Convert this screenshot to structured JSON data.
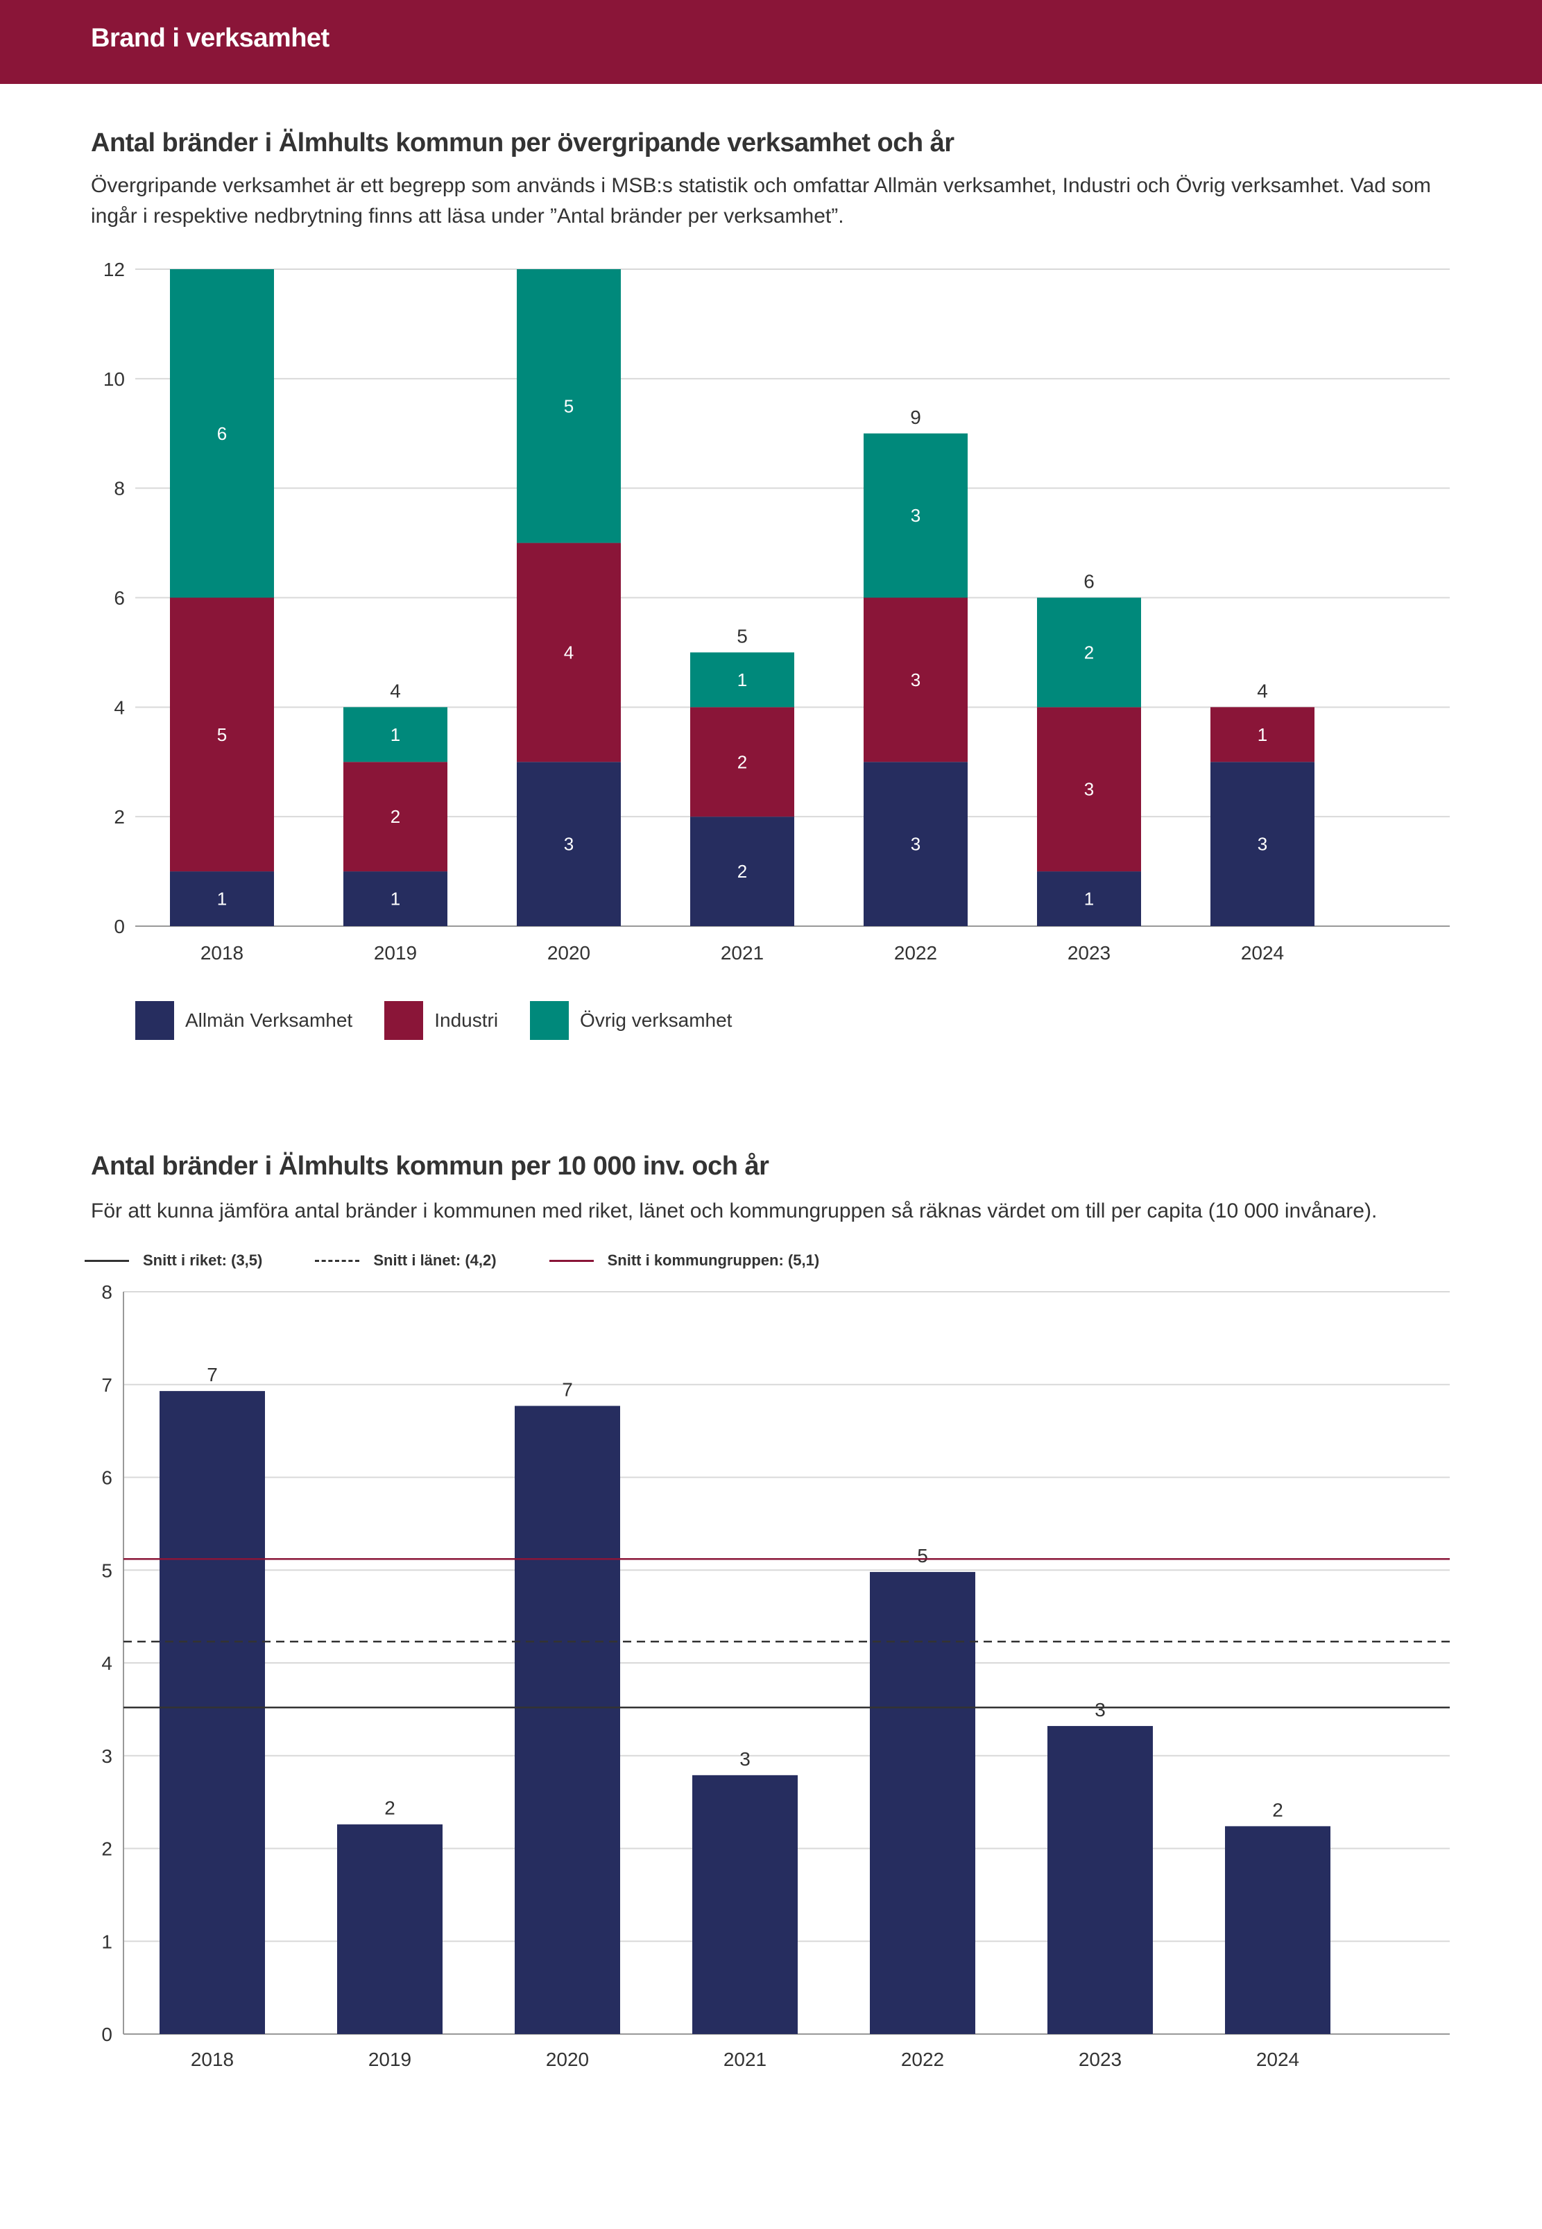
{
  "header": {
    "title": "Brand i verksamhet"
  },
  "section1": {
    "title": "Antal bränder i Älmhults kommun per övergripande verksamhet och år",
    "description": "Övergripande verksamhet är ett begrepp som används i MSB:s statistik och omfattar Allmän verksamhet, Industri och Övrig verksamhet. Vad som ingår i respektive nedbrytning finns att läsa under ”Antal bränder per verksamhet”."
  },
  "section2": {
    "title": "Antal bränder i Älmhults kommun per 10 000 inv. och år",
    "description": "För att kunna jämföra antal bränder i kommunen med riket, länet och kommungruppen så räknas värdet om till per capita (10 000 invånare)."
  },
  "colors": {
    "header": "#8a1538",
    "allman": "#262d5f",
    "industri": "#8a1538",
    "ovrig": "#00897b",
    "grid": "#d9d9d9"
  },
  "chart_data": [
    {
      "type": "bar",
      "stacked": true,
      "title": "Antal bränder i Älmhults kommun per övergripande verksamhet och år",
      "categories": [
        "2018",
        "2019",
        "2020",
        "2021",
        "2022",
        "2023",
        "2024"
      ],
      "series": [
        {
          "name": "Allmän Verksamhet",
          "values": [
            1,
            1,
            3,
            2,
            3,
            1,
            3
          ],
          "color": "#262d5f"
        },
        {
          "name": "Industri",
          "values": [
            5,
            2,
            4,
            2,
            3,
            3,
            1
          ],
          "color": "#8a1538"
        },
        {
          "name": "Övrig verksamhet",
          "values": [
            6,
            1,
            5,
            1,
            3,
            2,
            0
          ],
          "color": "#00897b"
        }
      ],
      "totals": [
        12,
        4,
        12,
        5,
        9,
        6,
        4
      ],
      "total_labels": [
        "",
        "4",
        "",
        "5",
        "9",
        "6",
        "4"
      ],
      "segment_labels": [
        [
          "1",
          "1",
          "3",
          "2",
          "3",
          "1",
          "3"
        ],
        [
          "5",
          "2",
          "4",
          "2",
          "3",
          "3",
          "1"
        ],
        [
          "6",
          "1",
          "5",
          "1",
          "3",
          "2",
          ""
        ]
      ],
      "ylim": [
        0,
        12
      ],
      "yticks": [
        "0",
        "2",
        "4",
        "6",
        "8",
        "10",
        "12"
      ],
      "legend_position": "bottom-left",
      "grid": true
    },
    {
      "type": "bar",
      "title": "Antal bränder i Älmhults kommun per 10 000 inv. och år",
      "categories": [
        "2018",
        "2019",
        "2020",
        "2021",
        "2022",
        "2023",
        "2024"
      ],
      "values": [
        6.93,
        2.26,
        6.77,
        2.79,
        4.98,
        3.32,
        2.24
      ],
      "value_labels": [
        "7",
        "2",
        "7",
        "3",
        "5",
        "3",
        "2"
      ],
      "bar_color": "#262d5f",
      "ylim": [
        0,
        8
      ],
      "yticks": [
        "0",
        "1",
        "2",
        "3",
        "4",
        "5",
        "6",
        "7",
        "8"
      ],
      "reference_lines": [
        {
          "label": "Snitt i riket: (3,5)",
          "value": 3.52,
          "style": "solid",
          "color": "#333333"
        },
        {
          "label": "Snitt i länet: (4,2)",
          "value": 4.23,
          "style": "dashed",
          "color": "#333333"
        },
        {
          "label": "Snitt i kommungruppen: (5,1)",
          "value": 5.12,
          "style": "solid",
          "color": "#8a1538"
        }
      ],
      "legend_position": "top-left",
      "grid": true
    }
  ]
}
